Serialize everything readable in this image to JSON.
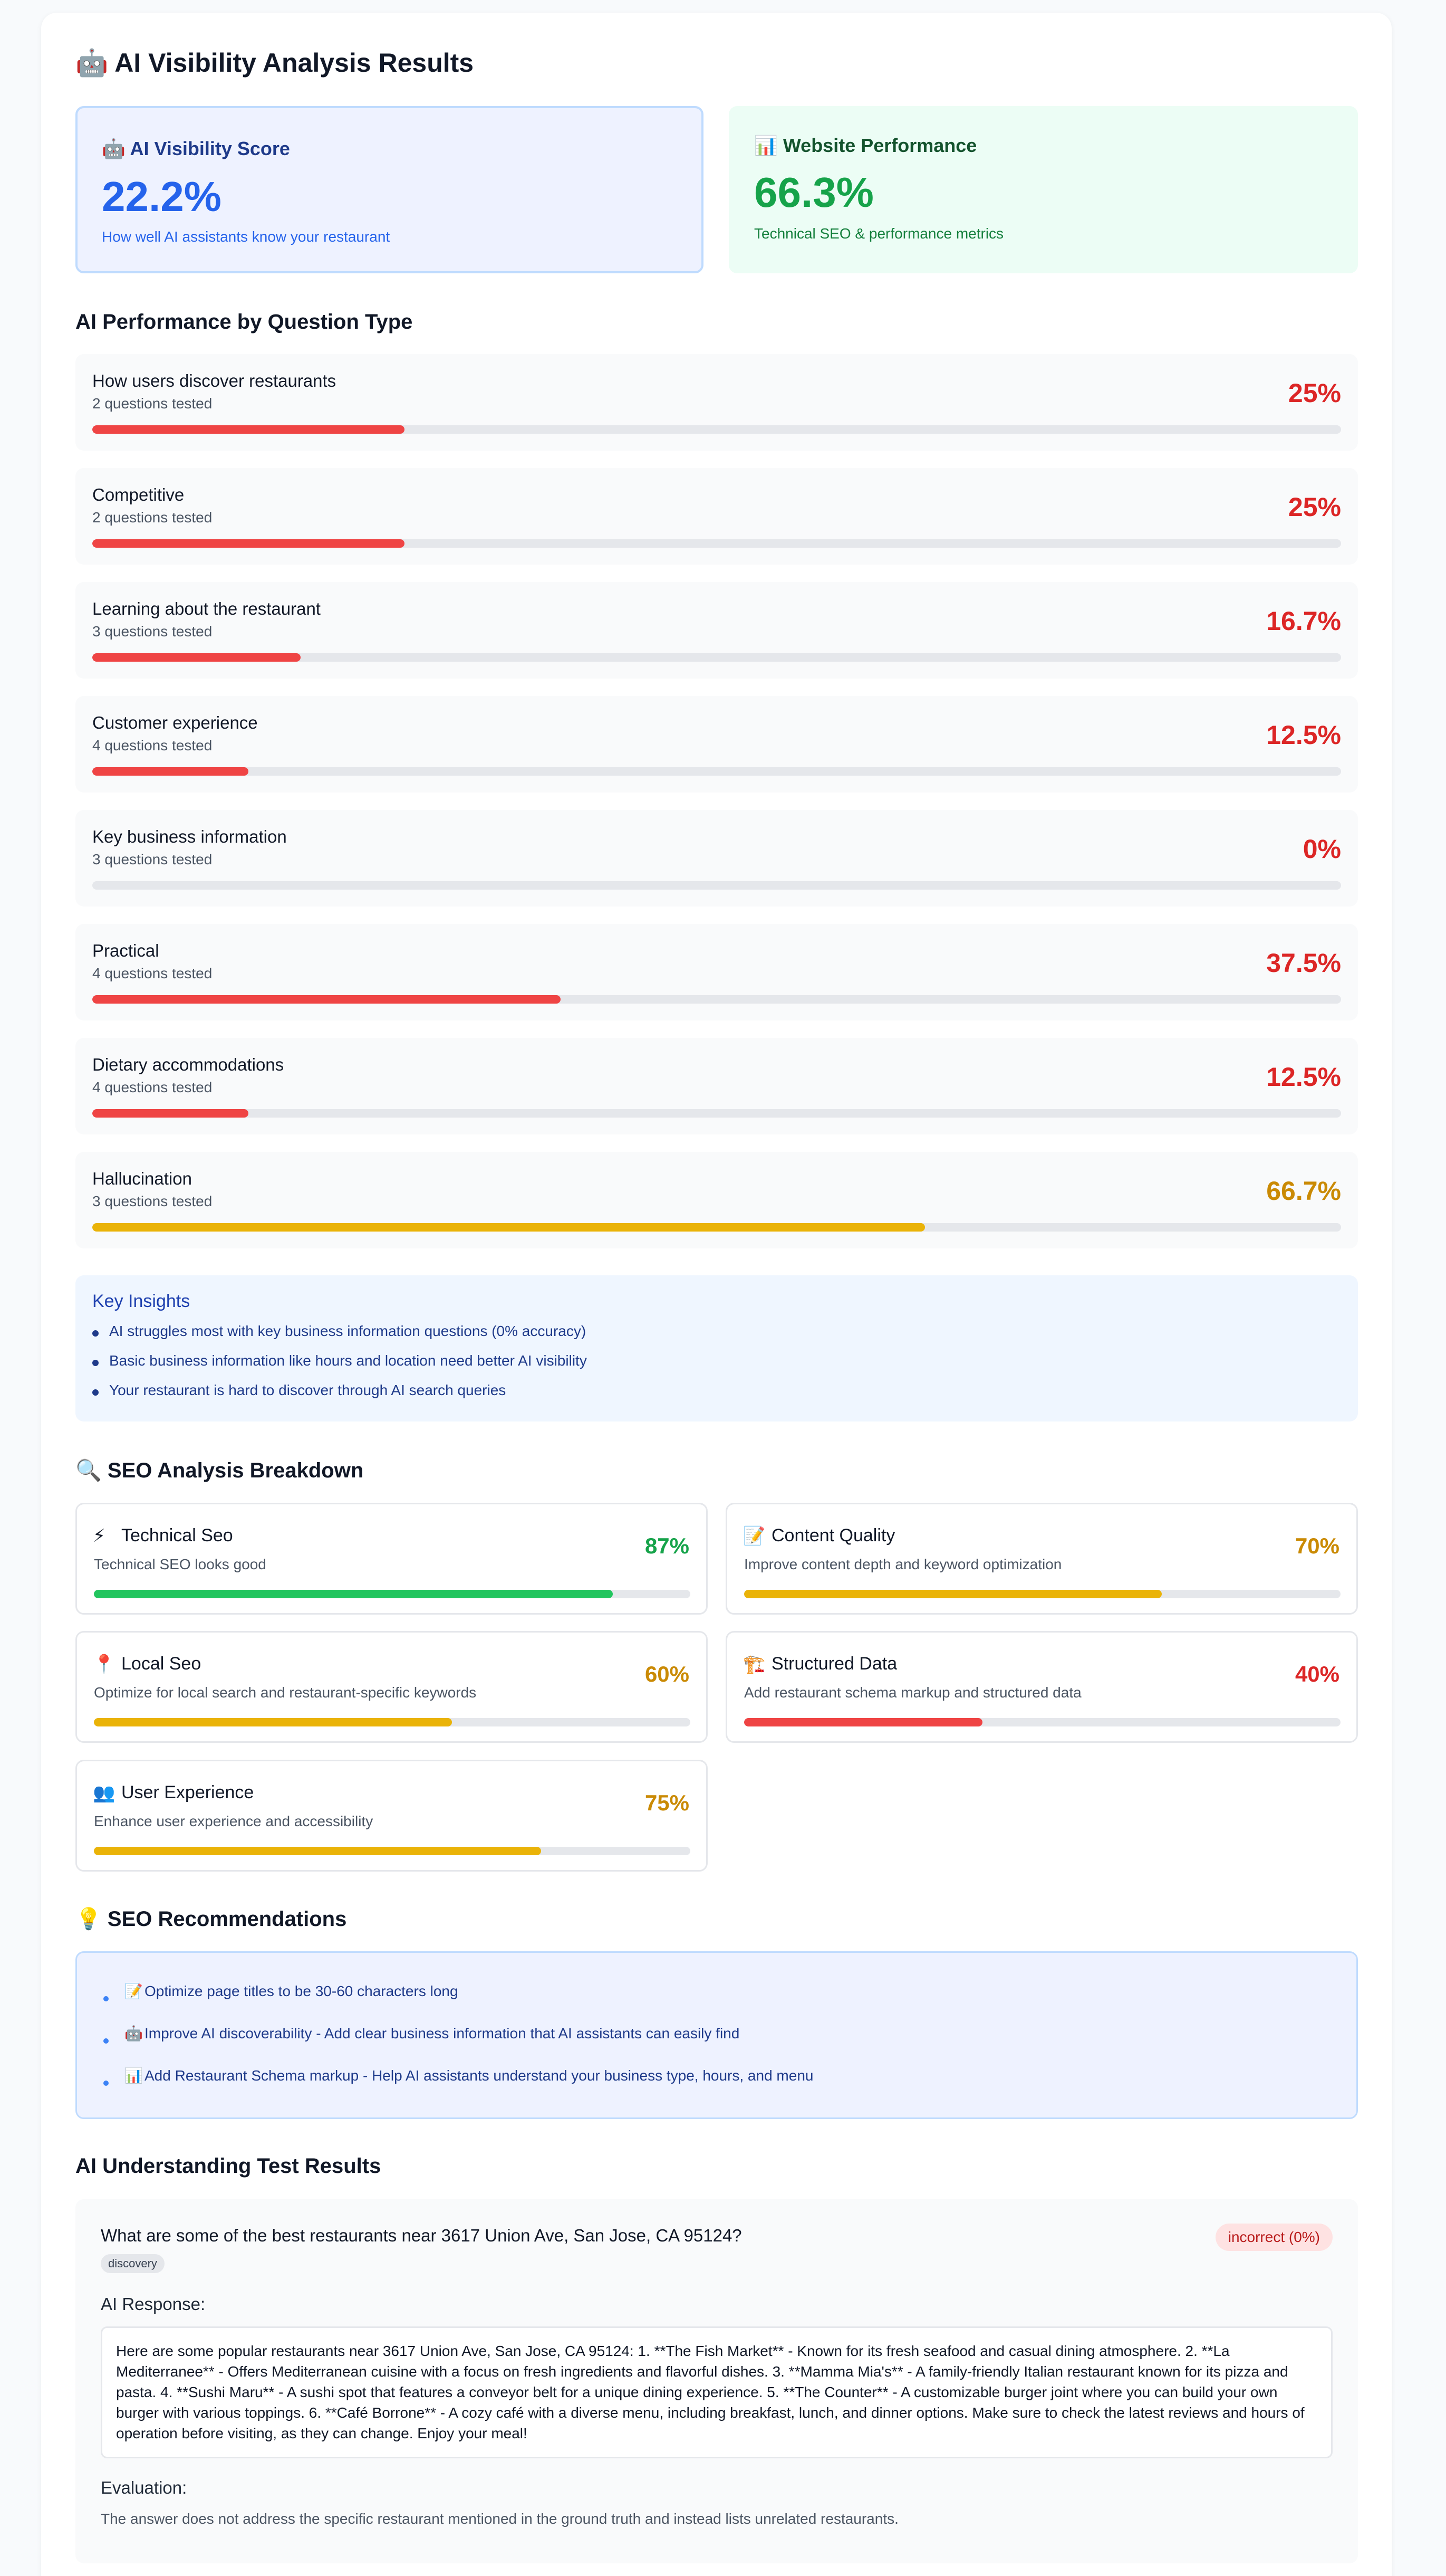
{
  "title": "🤖 AI Visibility Analysis Results",
  "scores": {
    "ai": {
      "icon": "🤖",
      "label": "AI Visibility Score",
      "value": "22.2%",
      "description": "How well AI assistants know your restaurant"
    },
    "web": {
      "icon": "📊",
      "label": "Website Performance",
      "value": "66.3%",
      "description": "Technical SEO & performance metrics"
    }
  },
  "performance": {
    "heading": "AI Performance by Question Type",
    "categories": [
      {
        "name": "How users discover restaurants",
        "count": "2 questions tested",
        "pct_label": "25%",
        "fill": 0.25,
        "color": "#ef4444",
        "text_color": "#dc2626"
      },
      {
        "name": "Competitive",
        "count": "2 questions tested",
        "pct_label": "25%",
        "fill": 0.25,
        "color": "#ef4444",
        "text_color": "#dc2626"
      },
      {
        "name": "Learning about the restaurant",
        "count": "3 questions tested",
        "pct_label": "16.7%",
        "fill": 0.167,
        "color": "#ef4444",
        "text_color": "#dc2626"
      },
      {
        "name": "Customer experience",
        "count": "4 questions tested",
        "pct_label": "12.5%",
        "fill": 0.125,
        "color": "#ef4444",
        "text_color": "#dc2626"
      },
      {
        "name": "Key business information",
        "count": "3 questions tested",
        "pct_label": "0%",
        "fill": 0,
        "color": "#ef4444",
        "text_color": "#dc2626"
      },
      {
        "name": "Practical",
        "count": "4 questions tested",
        "pct_label": "37.5%",
        "fill": 0.375,
        "color": "#ef4444",
        "text_color": "#dc2626"
      },
      {
        "name": "Dietary accommodations",
        "count": "4 questions tested",
        "pct_label": "12.5%",
        "fill": 0.125,
        "color": "#ef4444",
        "text_color": "#dc2626"
      },
      {
        "name": "Hallucination",
        "count": "3 questions tested",
        "pct_label": "66.7%",
        "fill": 0.667,
        "color": "#eab308",
        "text_color": "#ca8a04"
      }
    ]
  },
  "insights": {
    "title": "Key Insights",
    "items": [
      "AI struggles most with key business information questions (0% accuracy)",
      "Basic business information like hours and location need better AI visibility",
      "Your restaurant is hard to discover through AI search queries"
    ]
  },
  "seo": {
    "heading": "🔍 SEO Analysis Breakdown",
    "cards": [
      {
        "icon": "⚡",
        "name": "Technical Seo",
        "description": "Technical SEO looks good",
        "pct_label": "87%",
        "fill": 0.87,
        "color": "#22c55e",
        "text_color": "#16a34a"
      },
      {
        "icon": "📝",
        "name": "Content Quality",
        "description": "Improve content depth and keyword optimization",
        "pct_label": "70%",
        "fill": 0.7,
        "color": "#eab308",
        "text_color": "#ca8a04"
      },
      {
        "icon": "📍",
        "name": "Local Seo",
        "description": "Optimize for local search and restaurant-specific keywords",
        "pct_label": "60%",
        "fill": 0.6,
        "color": "#eab308",
        "text_color": "#ca8a04"
      },
      {
        "icon": "🏗️",
        "name": "Structured Data",
        "description": "Add restaurant schema markup and structured data",
        "pct_label": "40%",
        "fill": 0.4,
        "color": "#ef4444",
        "text_color": "#dc2626"
      },
      {
        "icon": "👥",
        "name": "User Experience",
        "description": "Enhance user experience and accessibility",
        "pct_label": "75%",
        "fill": 0.75,
        "color": "#eab308",
        "text_color": "#ca8a04"
      }
    ]
  },
  "recommendations": {
    "heading": "💡 SEO Recommendations",
    "items": [
      {
        "icon": "📝",
        "text": "Optimize page titles to be 30-60 characters long"
      },
      {
        "icon": "🤖",
        "text": "Improve AI discoverability - Add clear business information that AI assistants can easily find"
      },
      {
        "icon": "📊",
        "text": "Add Restaurant Schema markup - Help AI assistants understand your business type, hours, and menu"
      }
    ]
  },
  "tests": {
    "heading": "AI Understanding Test Results",
    "question": "What are some of the best restaurants near 3617 Union Ave, San Jose, CA 95124?",
    "tag": "discovery",
    "badge": "incorrect (0%)",
    "response_label": "AI Response:",
    "response": "Here are some popular restaurants near 3617 Union Ave, San Jose, CA 95124: 1. **The Fish Market** - Known for its fresh seafood and casual dining atmosphere. 2. **La Mediterranee** - Offers Mediterranean cuisine with a focus on fresh ingredients and flavorful dishes. 3. **Mamma Mia's** - A family-friendly Italian restaurant known for its pizza and pasta. 4. **Sushi Maru** - A sushi spot that features a conveyor belt for a unique dining experience. 5. **The Counter** - A customizable burger joint where you can build your own burger with various toppings. 6. **Café Borrone** - A cozy café with a diverse menu, including breakfast, lunch, and dinner options. Make sure to check the latest reviews and hours of operation before visiting, as they can change. Enjoy your meal!",
    "evaluation_label": "Evaluation:",
    "evaluation": "The answer does not address the specific restaurant mentioned in the ground truth and instead lists unrelated restaurants."
  }
}
